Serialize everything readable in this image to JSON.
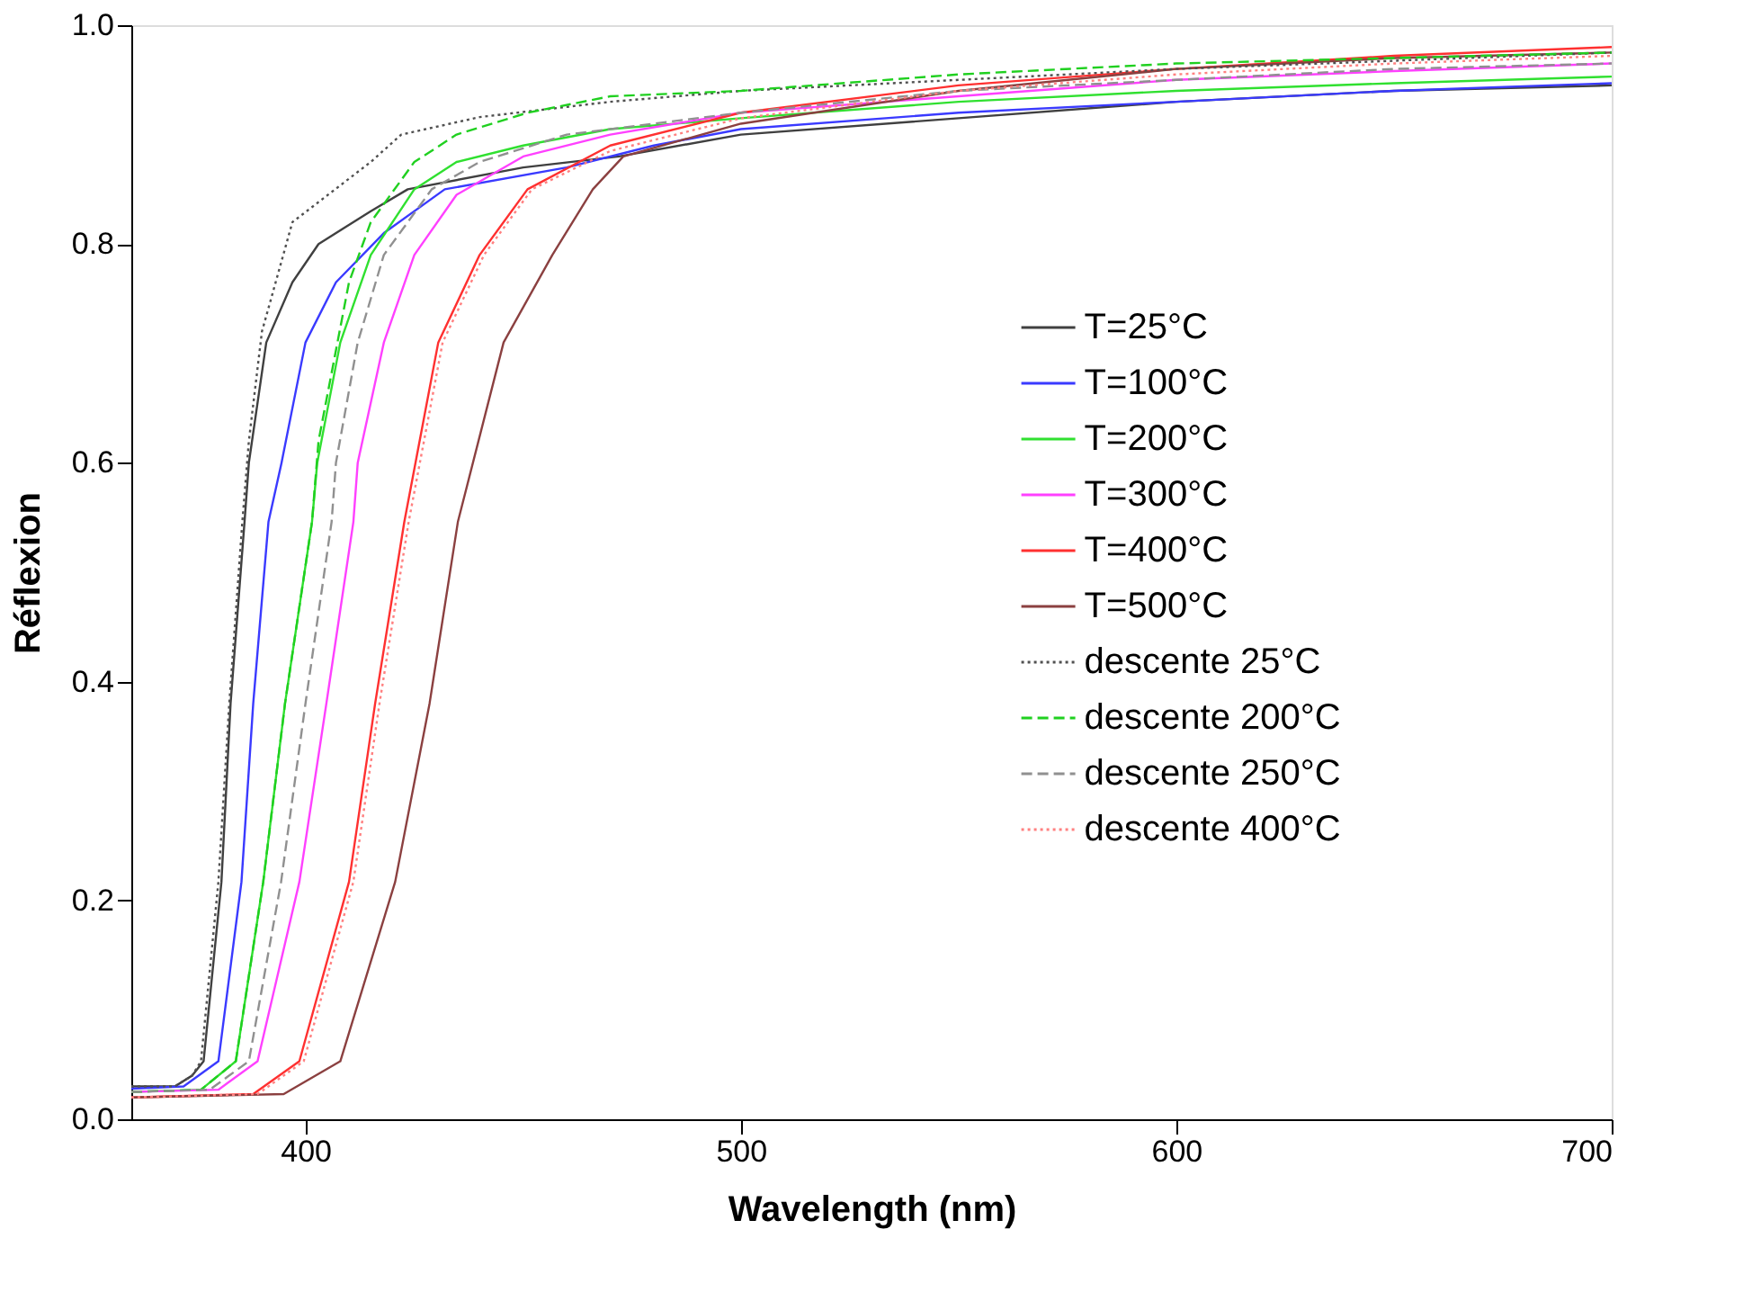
{
  "chart_data": {
    "type": "line",
    "xlabel": "Wavelength (nm)",
    "ylabel": "Réflexion",
    "xlim": [
      360,
      700
    ],
    "xticks": [
      400,
      500,
      600,
      700
    ],
    "ylim": [
      0,
      1
    ],
    "yticks": [
      {
        "value": 0,
        "label": "0.0"
      },
      {
        "value": 0.2,
        "label": "0.2"
      },
      {
        "value": 0.4,
        "label": "0.4"
      },
      {
        "value": 0.6,
        "label": "0.6"
      },
      {
        "value": 0.8,
        "label": "0.8"
      },
      {
        "value": 1,
        "label": "1.0"
      }
    ],
    "grid": false,
    "legend": "right",
    "series": [
      {
        "name": "T=25°C",
        "color": "#404040",
        "line_style": "solid",
        "x": [
          360,
          370,
          374,
          376.6,
          380.7,
          382.8,
          386,
          387,
          391,
          397,
          403,
          415,
          423.5,
          450,
          472,
          500,
          550,
          600,
          650,
          700
        ],
        "values": [
          0.03,
          0.03,
          0.04,
          0.053,
          0.217,
          0.38,
          0.546,
          0.6,
          0.71,
          0.765,
          0.8,
          0.83,
          0.85,
          0.87,
          0.88,
          0.9,
          0.915,
          0.93,
          0.94,
          0.945
        ]
      },
      {
        "name": "T=100°C",
        "color": "#3a3aff",
        "line_style": "solid",
        "x": [
          360,
          372,
          380,
          385.3,
          388,
          391.5,
          394.5,
          400,
          407,
          418,
          432,
          460,
          480,
          500,
          550,
          600,
          650,
          700
        ],
        "values": [
          0.028,
          0.03,
          0.053,
          0.217,
          0.38,
          0.546,
          0.6,
          0.71,
          0.765,
          0.81,
          0.85,
          0.87,
          0.89,
          0.905,
          0.92,
          0.93,
          0.94,
          0.947
        ]
      },
      {
        "name": "T=200°C",
        "color": "#30e030",
        "line_style": "solid",
        "x": [
          360,
          376,
          384,
          390.3,
          395.3,
          401.5,
          402.7,
          408,
          415,
          425,
          434.7,
          450,
          470,
          500,
          550,
          600,
          650,
          700
        ],
        "values": [
          0.025,
          0.027,
          0.053,
          0.217,
          0.38,
          0.546,
          0.6,
          0.71,
          0.79,
          0.85,
          0.875,
          0.89,
          0.905,
          0.915,
          0.93,
          0.94,
          0.947,
          0.953
        ]
      },
      {
        "name": "T=300°C",
        "color": "#ff40ff",
        "line_style": "solid",
        "x": [
          360,
          380,
          389,
          398.6,
          404.8,
          411,
          412,
          418,
          425,
          434.7,
          450,
          470,
          500,
          550,
          600,
          650,
          700
        ],
        "values": [
          0.025,
          0.027,
          0.053,
          0.217,
          0.38,
          0.546,
          0.6,
          0.71,
          0.79,
          0.845,
          0.88,
          0.9,
          0.92,
          0.935,
          0.95,
          0.958,
          0.965
        ]
      },
      {
        "name": "T=400°C",
        "color": "#ff3030",
        "line_style": "solid",
        "x": [
          360,
          388,
          398.6,
          410,
          416,
          422.7,
          430.5,
          440,
          451,
          470,
          500,
          550,
          600,
          650,
          700
        ],
        "values": [
          0.02,
          0.023,
          0.053,
          0.217,
          0.38,
          0.546,
          0.71,
          0.79,
          0.85,
          0.89,
          0.92,
          0.945,
          0.96,
          0.972,
          0.98
        ]
      },
      {
        "name": "T=500°C",
        "color": "#8b4040",
        "line_style": "solid",
        "x": [
          360,
          395,
          408,
          420.6,
          428.5,
          435,
          445.5,
          456.7,
          466,
          473,
          500,
          550,
          600,
          650,
          700
        ],
        "values": [
          0.02,
          0.023,
          0.053,
          0.217,
          0.38,
          0.546,
          0.71,
          0.79,
          0.85,
          0.88,
          0.91,
          0.94,
          0.96,
          0.97,
          0.975
        ]
      },
      {
        "name": "descente 25°C",
        "color": "#505050",
        "line_style": "dotted",
        "x": [
          360,
          370,
          374,
          376,
          380,
          382.5,
          385.5,
          387,
          390,
          397,
          415,
          422,
          440,
          470,
          500,
          600,
          700
        ],
        "values": [
          0.03,
          0.03,
          0.04,
          0.053,
          0.217,
          0.38,
          0.546,
          0.62,
          0.72,
          0.82,
          0.875,
          0.9,
          0.916,
          0.93,
          0.94,
          0.96,
          0.975
        ]
      },
      {
        "name": "descente 200°C",
        "color": "#20d020",
        "line_style": "dashed",
        "x": [
          360,
          376,
          384,
          390.3,
          395.3,
          401.5,
          403,
          410,
          415,
          425,
          434.7,
          451,
          470,
          500,
          550,
          600,
          650,
          700
        ],
        "values": [
          0.025,
          0.027,
          0.053,
          0.217,
          0.38,
          0.546,
          0.62,
          0.765,
          0.82,
          0.875,
          0.9,
          0.92,
          0.935,
          0.94,
          0.955,
          0.965,
          0.97,
          0.975
        ]
      },
      {
        "name": "descente 250°C",
        "color": "#909090",
        "line_style": "dashed",
        "x": [
          360,
          378,
          387,
          394.4,
          400,
          406,
          407,
          412,
          418,
          429,
          440,
          460,
          500,
          550,
          600,
          650,
          700
        ],
        "values": [
          0.025,
          0.027,
          0.053,
          0.217,
          0.38,
          0.546,
          0.6,
          0.71,
          0.79,
          0.85,
          0.875,
          0.9,
          0.92,
          0.94,
          0.95,
          0.96,
          0.965
        ]
      },
      {
        "name": "descente 400°C",
        "color": "#ff8080",
        "line_style": "dotted",
        "x": [
          360,
          389,
          399.6,
          411,
          417,
          423.7,
          431.5,
          441,
          452,
          470,
          500,
          550,
          600,
          650,
          700
        ],
        "values": [
          0.02,
          0.023,
          0.053,
          0.217,
          0.38,
          0.546,
          0.71,
          0.79,
          0.85,
          0.885,
          0.915,
          0.94,
          0.955,
          0.965,
          0.972
        ]
      }
    ]
  }
}
